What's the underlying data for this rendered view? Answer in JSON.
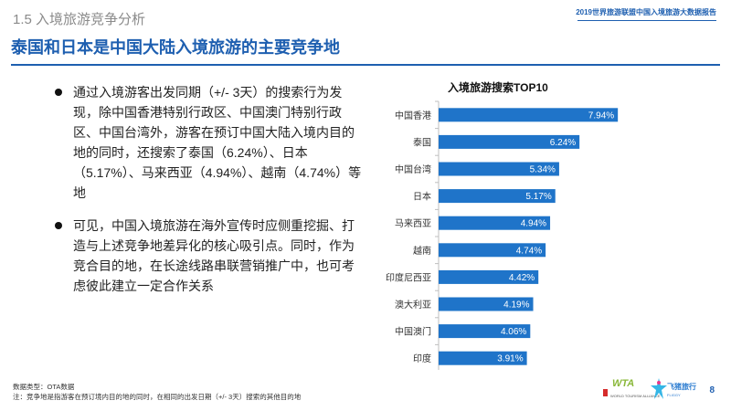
{
  "header": {
    "section_title": "1.5  入境旅游竞争分析",
    "report_name": "2019世界旅游联盟中国入境旅游大数据报告",
    "headline": "泰国和日本是中国大陆入境旅游的主要竞争地"
  },
  "bullets": [
    "通过入境游客出发同期（+/- 3天）的搜索行为发现，除中国香港特别行政区、中国澳门特别行政区、中国台湾外，游客在预订中国大陆入境内目的地的同时，还搜索了泰国（6.24%）、日本（5.17%）、马来西亚（4.94%）、越南（4.74%）等地",
    "可见，中国入境旅游在海外宣传时应侧重挖掘、打造与上述竞争地差异化的核心吸引点。同时，作为竞合目的地，在长途线路串联营销推广中，也可考虑彼此建立一定合作关系"
  ],
  "chart_data": {
    "type": "bar",
    "orientation": "horizontal",
    "title": "入境旅游搜索TOP10",
    "categories": [
      "中国香港",
      "泰国",
      "中国台湾",
      "日本",
      "马来西亚",
      "越南",
      "印度尼西亚",
      "澳大利亚",
      "中国澳门",
      "印度"
    ],
    "values": [
      7.94,
      6.24,
      5.34,
      5.17,
      4.94,
      4.74,
      4.42,
      4.19,
      4.06,
      3.91
    ],
    "value_labels": [
      "7.94%",
      "6.24%",
      "5.34%",
      "5.17%",
      "4.94%",
      "4.74%",
      "4.42%",
      "4.19%",
      "4.06%",
      "3.91%"
    ],
    "xlim": [
      0,
      8.5
    ],
    "xlabel": "",
    "ylabel": "",
    "bar_color": "#1f74c9"
  },
  "footer": {
    "data_type": "数据类型：OTA数据",
    "note": "注：竞争地是指游客在预订境内目的地的同时，在相同的出发日期（+/- 3天）搜索的其他目的地",
    "page_number": "8",
    "logo_wta_text": "WTA",
    "logo_wta_sub": "WORLD TOURISM ALLIANCE",
    "logo_ota_name": "飞猪旅行",
    "logo_ota_sub": "FLIGGY"
  }
}
